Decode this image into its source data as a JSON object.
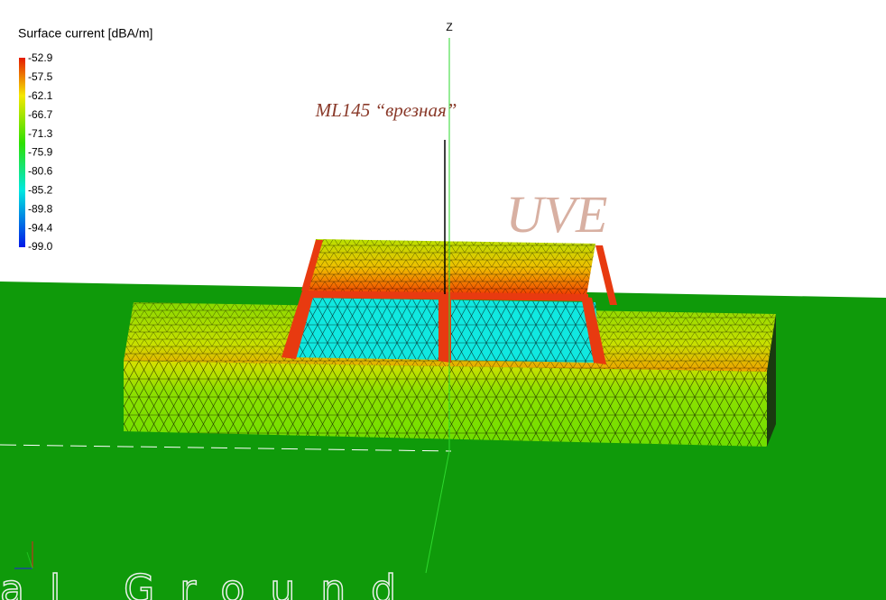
{
  "legend": {
    "title": "Surface current [dBA/m]",
    "labels": [
      "-52.9",
      "-57.5",
      "-62.1",
      "-66.7",
      "-71.3",
      "-75.9",
      "-80.6",
      "-85.2",
      "-89.8",
      "-94.4",
      "-99.0"
    ]
  },
  "axis_label": "Z",
  "annotation": "ML145 “врезная”",
  "watermark": "UVE",
  "ground_label": "al Ground"
}
